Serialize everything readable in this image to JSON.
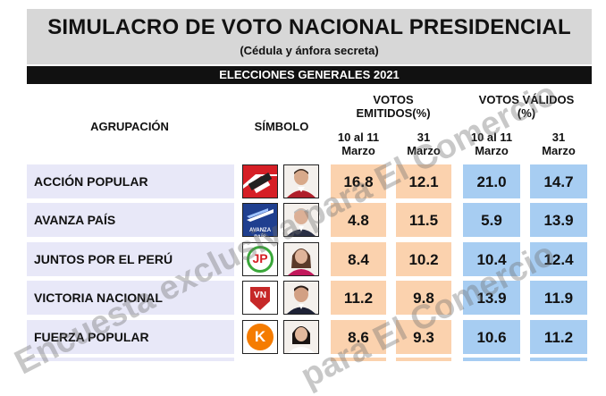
{
  "header": {
    "title": "SIMULACRO DE VOTO NACIONAL PRESIDENCIAL",
    "subtitle": "(Cédula y ánfora secreta)",
    "bar": "ELECCIONES GENERALES 2021"
  },
  "columns": {
    "agrupacion": "AGRUPACIÓN",
    "simbolo": "SÍMBOLO",
    "emitidos_l1": "VOTOS",
    "emitidos_l2": "EMITIDOS(%)",
    "validos_l1": "VOTOS VÁLIDOS",
    "validos_l2": "(%)",
    "d1_l1": "10 al 11",
    "d1_l2": "Marzo",
    "d2_l1": "31",
    "d2_l2": "Marzo"
  },
  "rows": [
    {
      "party": "ACCIÓN POPULAR",
      "em1": "16.8",
      "em2": "12.1",
      "va1": "21.0",
      "va2": "14.7",
      "logo_icon": "accion-popular-logo-icon"
    },
    {
      "party": "AVANZA PAÍS",
      "em1": "4.8",
      "em2": "11.5",
      "va1": "5.9",
      "va2": "13.9",
      "logo_icon": "avanza-pais-logo-icon",
      "logo_text": "AVANZA PAÍS"
    },
    {
      "party": "JUNTOS POR EL PERÚ",
      "em1": "8.4",
      "em2": "10.2",
      "va1": "10.4",
      "va2": "12.4",
      "logo_icon": "juntos-por-el-peru-logo-icon",
      "logo_text": "JP"
    },
    {
      "party": "VICTORIA NACIONAL",
      "em1": "11.2",
      "em2": "9.8",
      "va1": "13.9",
      "va2": "11.9",
      "logo_icon": "victoria-nacional-logo-icon",
      "logo_text": "VN"
    },
    {
      "party": "FUERZA POPULAR",
      "em1": "8.6",
      "em2": "9.3",
      "va1": "10.6",
      "va2": "11.2",
      "logo_icon": "fuerza-popular-logo-icon",
      "logo_text": "K"
    }
  ],
  "watermark": {
    "line1": "Encuesta exclusiva para El Comercio",
    "line2": "para El Comercio"
  },
  "colors": {
    "peach": "#fbd2ae",
    "blue": "#a7cdf2",
    "lavender": "#e8e8f8",
    "header_gray": "#d7d7d7"
  }
}
